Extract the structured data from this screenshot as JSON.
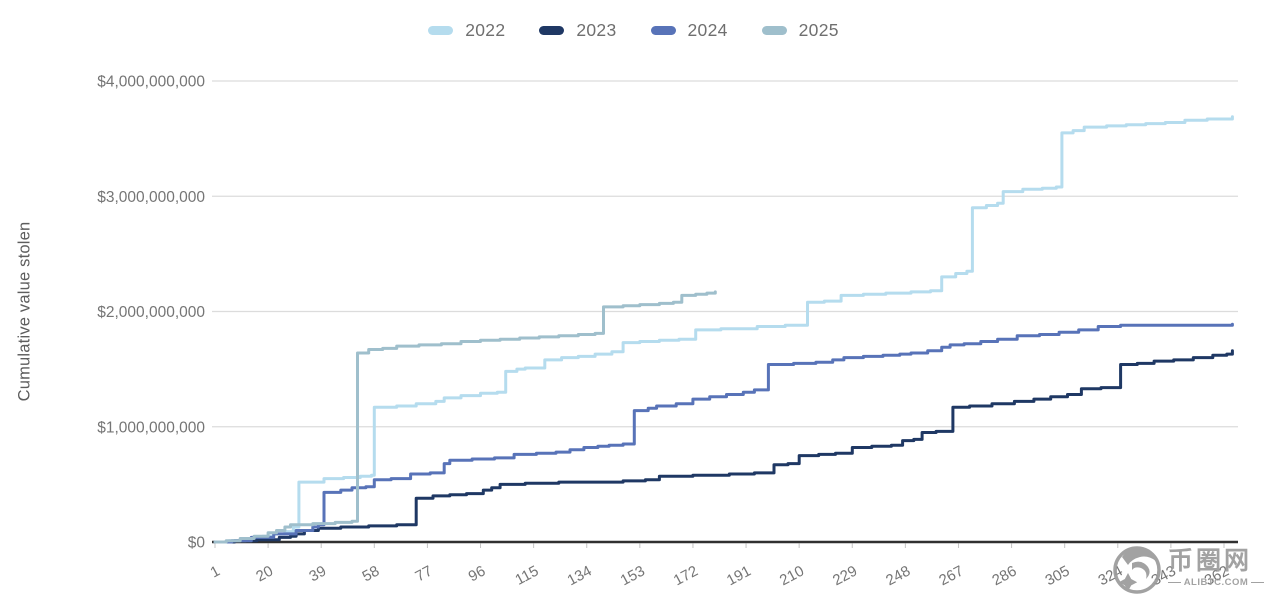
{
  "legend": {
    "items": [
      {
        "label": "2022",
        "color": "#b5dcee"
      },
      {
        "label": "2023",
        "color": "#1f3864"
      },
      {
        "label": "2024",
        "color": "#5873b8"
      },
      {
        "label": "2025",
        "color": "#9fbfcc"
      }
    ]
  },
  "y_axis": {
    "title": "Cumulative value stolen",
    "ticks": [
      {
        "value": 0,
        "label": "$0"
      },
      {
        "value": 1,
        "label": "$1,000,000,000"
      },
      {
        "value": 2,
        "label": "$2,000,000,000"
      },
      {
        "value": 3,
        "label": "$3,000,000,000"
      },
      {
        "value": 4,
        "label": "$4,000,000,000"
      }
    ]
  },
  "x_axis": {
    "tick_values": [
      1,
      20,
      39,
      58,
      77,
      96,
      115,
      134,
      153,
      172,
      191,
      210,
      229,
      248,
      267,
      286,
      305,
      324,
      343,
      362
    ]
  },
  "watermark": {
    "site_name": "币圈网",
    "domain": "ALIBTC.COM"
  },
  "chart_data": {
    "type": "line",
    "step": true,
    "title": "",
    "xlabel": "",
    "ylabel": "Cumulative value stolen",
    "x_range_days": [
      1,
      365
    ],
    "ylim_billions": [
      0,
      4
    ],
    "unit": "USD (values in billions)",
    "grid": "horizontal only",
    "legend_position": "top center",
    "x_ticks": [
      1,
      20,
      39,
      58,
      77,
      96,
      115,
      134,
      153,
      172,
      191,
      210,
      229,
      248,
      267,
      286,
      305,
      324,
      343,
      362
    ],
    "y_ticks": [
      {
        "value": 0,
        "label": "$0"
      },
      {
        "value": 1,
        "label": "$1,000,000,000"
      },
      {
        "value": 2,
        "label": "$2,000,000,000"
      },
      {
        "value": 3,
        "label": "$3,000,000,000"
      },
      {
        "value": 4,
        "label": "$4,000,000,000"
      }
    ],
    "series": [
      {
        "name": "2022",
        "color": "#b5dcee",
        "points": [
          [
            1,
            0
          ],
          [
            6,
            0.01
          ],
          [
            12,
            0.03
          ],
          [
            18,
            0.05
          ],
          [
            22,
            0.07
          ],
          [
            26,
            0.09
          ],
          [
            29,
            0.13
          ],
          [
            31,
            0.52
          ],
          [
            40,
            0.55
          ],
          [
            47,
            0.56
          ],
          [
            53,
            0.57
          ],
          [
            57,
            0.58
          ],
          [
            58,
            1.17
          ],
          [
            66,
            1.18
          ],
          [
            73,
            1.2
          ],
          [
            80,
            1.22
          ],
          [
            83,
            1.25
          ],
          [
            89,
            1.27
          ],
          [
            96,
            1.29
          ],
          [
            102,
            1.3
          ],
          [
            105,
            1.48
          ],
          [
            109,
            1.5
          ],
          [
            112,
            1.51
          ],
          [
            119,
            1.58
          ],
          [
            125,
            1.6
          ],
          [
            131,
            1.61
          ],
          [
            137,
            1.63
          ],
          [
            143,
            1.65
          ],
          [
            147,
            1.73
          ],
          [
            153,
            1.74
          ],
          [
            160,
            1.75
          ],
          [
            167,
            1.76
          ],
          [
            173,
            1.84
          ],
          [
            182,
            1.85
          ],
          [
            195,
            1.87
          ],
          [
            205,
            1.88
          ],
          [
            213,
            2.08
          ],
          [
            219,
            2.09
          ],
          [
            225,
            2.14
          ],
          [
            233,
            2.15
          ],
          [
            241,
            2.16
          ],
          [
            250,
            2.17
          ],
          [
            257,
            2.18
          ],
          [
            261,
            2.3
          ],
          [
            266,
            2.33
          ],
          [
            270,
            2.35
          ],
          [
            272,
            2.9
          ],
          [
            277,
            2.92
          ],
          [
            281,
            2.94
          ],
          [
            283,
            3.04
          ],
          [
            290,
            3.06
          ],
          [
            297,
            3.07
          ],
          [
            302,
            3.08
          ],
          [
            304,
            3.55
          ],
          [
            308,
            3.57
          ],
          [
            312,
            3.6
          ],
          [
            320,
            3.61
          ],
          [
            327,
            3.62
          ],
          [
            334,
            3.63
          ],
          [
            341,
            3.64
          ],
          [
            348,
            3.66
          ],
          [
            356,
            3.67
          ],
          [
            365,
            3.69
          ]
        ]
      },
      {
        "name": "2023",
        "color": "#1f3864",
        "points": [
          [
            1,
            0
          ],
          [
            8,
            0.01
          ],
          [
            16,
            0.02
          ],
          [
            24,
            0.04
          ],
          [
            28,
            0.05
          ],
          [
            30,
            0.07
          ],
          [
            33,
            0.1
          ],
          [
            38,
            0.12
          ],
          [
            46,
            0.13
          ],
          [
            56,
            0.14
          ],
          [
            66,
            0.15
          ],
          [
            73,
            0.38
          ],
          [
            79,
            0.4
          ],
          [
            85,
            0.41
          ],
          [
            91,
            0.42
          ],
          [
            97,
            0.45
          ],
          [
            100,
            0.47
          ],
          [
            103,
            0.5
          ],
          [
            112,
            0.51
          ],
          [
            124,
            0.52
          ],
          [
            147,
            0.53
          ],
          [
            155,
            0.54
          ],
          [
            160,
            0.57
          ],
          [
            172,
            0.58
          ],
          [
            185,
            0.59
          ],
          [
            194,
            0.6
          ],
          [
            201,
            0.67
          ],
          [
            206,
            0.68
          ],
          [
            210,
            0.75
          ],
          [
            217,
            0.76
          ],
          [
            223,
            0.77
          ],
          [
            229,
            0.82
          ],
          [
            236,
            0.83
          ],
          [
            243,
            0.84
          ],
          [
            247,
            0.88
          ],
          [
            251,
            0.89
          ],
          [
            254,
            0.95
          ],
          [
            259,
            0.96
          ],
          [
            265,
            1.17
          ],
          [
            271,
            1.18
          ],
          [
            279,
            1.2
          ],
          [
            287,
            1.22
          ],
          [
            294,
            1.24
          ],
          [
            300,
            1.26
          ],
          [
            306,
            1.28
          ],
          [
            311,
            1.33
          ],
          [
            318,
            1.34
          ],
          [
            325,
            1.54
          ],
          [
            331,
            1.55
          ],
          [
            337,
            1.57
          ],
          [
            344,
            1.58
          ],
          [
            351,
            1.6
          ],
          [
            358,
            1.62
          ],
          [
            363,
            1.63
          ],
          [
            365,
            1.66
          ]
        ]
      },
      {
        "name": "2024",
        "color": "#5873b8",
        "points": [
          [
            1,
            0
          ],
          [
            7,
            0.01
          ],
          [
            14,
            0.04
          ],
          [
            22,
            0.07
          ],
          [
            30,
            0.1
          ],
          [
            36,
            0.13
          ],
          [
            38,
            0.15
          ],
          [
            40,
            0.43
          ],
          [
            46,
            0.45
          ],
          [
            50,
            0.47
          ],
          [
            55,
            0.48
          ],
          [
            58,
            0.54
          ],
          [
            64,
            0.55
          ],
          [
            71,
            0.59
          ],
          [
            78,
            0.6
          ],
          [
            83,
            0.68
          ],
          [
            85,
            0.71
          ],
          [
            93,
            0.72
          ],
          [
            101,
            0.73
          ],
          [
            108,
            0.76
          ],
          [
            116,
            0.77
          ],
          [
            123,
            0.78
          ],
          [
            128,
            0.8
          ],
          [
            133,
            0.82
          ],
          [
            138,
            0.83
          ],
          [
            142,
            0.84
          ],
          [
            147,
            0.85
          ],
          [
            151,
            1.14
          ],
          [
            156,
            1.16
          ],
          [
            159,
            1.18
          ],
          [
            166,
            1.2
          ],
          [
            172,
            1.24
          ],
          [
            178,
            1.26
          ],
          [
            184,
            1.28
          ],
          [
            190,
            1.3
          ],
          [
            194,
            1.32
          ],
          [
            199,
            1.54
          ],
          [
            208,
            1.55
          ],
          [
            216,
            1.56
          ],
          [
            222,
            1.58
          ],
          [
            226,
            1.6
          ],
          [
            233,
            1.61
          ],
          [
            240,
            1.62
          ],
          [
            246,
            1.63
          ],
          [
            250,
            1.64
          ],
          [
            256,
            1.66
          ],
          [
            261,
            1.69
          ],
          [
            264,
            1.71
          ],
          [
            269,
            1.72
          ],
          [
            275,
            1.74
          ],
          [
            281,
            1.76
          ],
          [
            288,
            1.79
          ],
          [
            296,
            1.8
          ],
          [
            303,
            1.82
          ],
          [
            310,
            1.84
          ],
          [
            317,
            1.87
          ],
          [
            325,
            1.88
          ],
          [
            345,
            1.88
          ],
          [
            365,
            1.89
          ]
        ]
      },
      {
        "name": "2025",
        "color": "#9fbfcc",
        "points": [
          [
            1,
            0
          ],
          [
            5,
            0.01
          ],
          [
            10,
            0.03
          ],
          [
            15,
            0.05
          ],
          [
            20,
            0.08
          ],
          [
            23,
            0.1
          ],
          [
            26,
            0.13
          ],
          [
            28,
            0.15
          ],
          [
            36,
            0.16
          ],
          [
            44,
            0.17
          ],
          [
            50,
            0.18
          ],
          [
            52,
            1.64
          ],
          [
            56,
            1.67
          ],
          [
            61,
            1.68
          ],
          [
            66,
            1.7
          ],
          [
            74,
            1.71
          ],
          [
            82,
            1.72
          ],
          [
            89,
            1.74
          ],
          [
            96,
            1.75
          ],
          [
            103,
            1.76
          ],
          [
            110,
            1.77
          ],
          [
            117,
            1.78
          ],
          [
            124,
            1.79
          ],
          [
            131,
            1.8
          ],
          [
            137,
            1.81
          ],
          [
            140,
            2.04
          ],
          [
            147,
            2.05
          ],
          [
            153,
            2.06
          ],
          [
            160,
            2.07
          ],
          [
            165,
            2.08
          ],
          [
            168,
            2.14
          ],
          [
            173,
            2.15
          ],
          [
            177,
            2.16
          ],
          [
            180,
            2.17
          ]
        ]
      }
    ]
  }
}
